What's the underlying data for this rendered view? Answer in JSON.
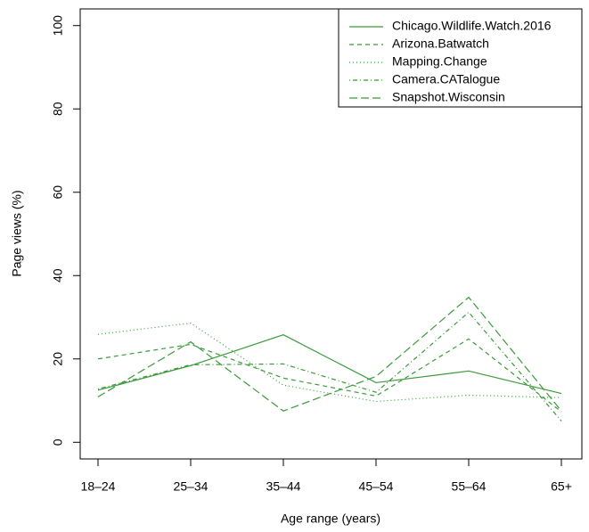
{
  "chart_data": {
    "type": "line",
    "x_label": "Age range (years)",
    "y_label": "Page views (%)",
    "categories": [
      "18–24",
      "25–34",
      "35–44",
      "45–54",
      "55–64",
      "65+"
    ],
    "ylim": [
      -4,
      104
    ],
    "yticks": [
      0,
      20,
      40,
      60,
      80,
      100
    ],
    "grid": false,
    "legend": "top-right",
    "series": [
      {
        "name": "Chicago.Wildlife.Watch.2016",
        "color": "#3a9a3a",
        "dash": "solid",
        "values": [
          12.5,
          18.4,
          25.8,
          14.3,
          17.1,
          11.7
        ]
      },
      {
        "name": "Arizona.Batwatch",
        "color": "#3a9a3a",
        "dash": "dashed",
        "values": [
          20,
          23.5,
          15.4,
          11.1,
          24.8,
          7.3
        ]
      },
      {
        "name": "Mapping.Change",
        "color": "#3a9a3a",
        "dash": "dotted",
        "values": [
          25.9,
          28.6,
          13.7,
          9.8,
          11.3,
          10.7
        ]
      },
      {
        "name": "Camera.CATalogue",
        "color": "#3a9a3a",
        "dash": "dotdash",
        "values": [
          12.8,
          18.6,
          18.8,
          12,
          31.2,
          5.1
        ]
      },
      {
        "name": "Snapshot.Wisconsin",
        "color": "#3a9a3a",
        "dash": "longdash",
        "values": [
          10.9,
          24.1,
          7.5,
          15.8,
          34.8,
          7.5
        ]
      }
    ]
  }
}
